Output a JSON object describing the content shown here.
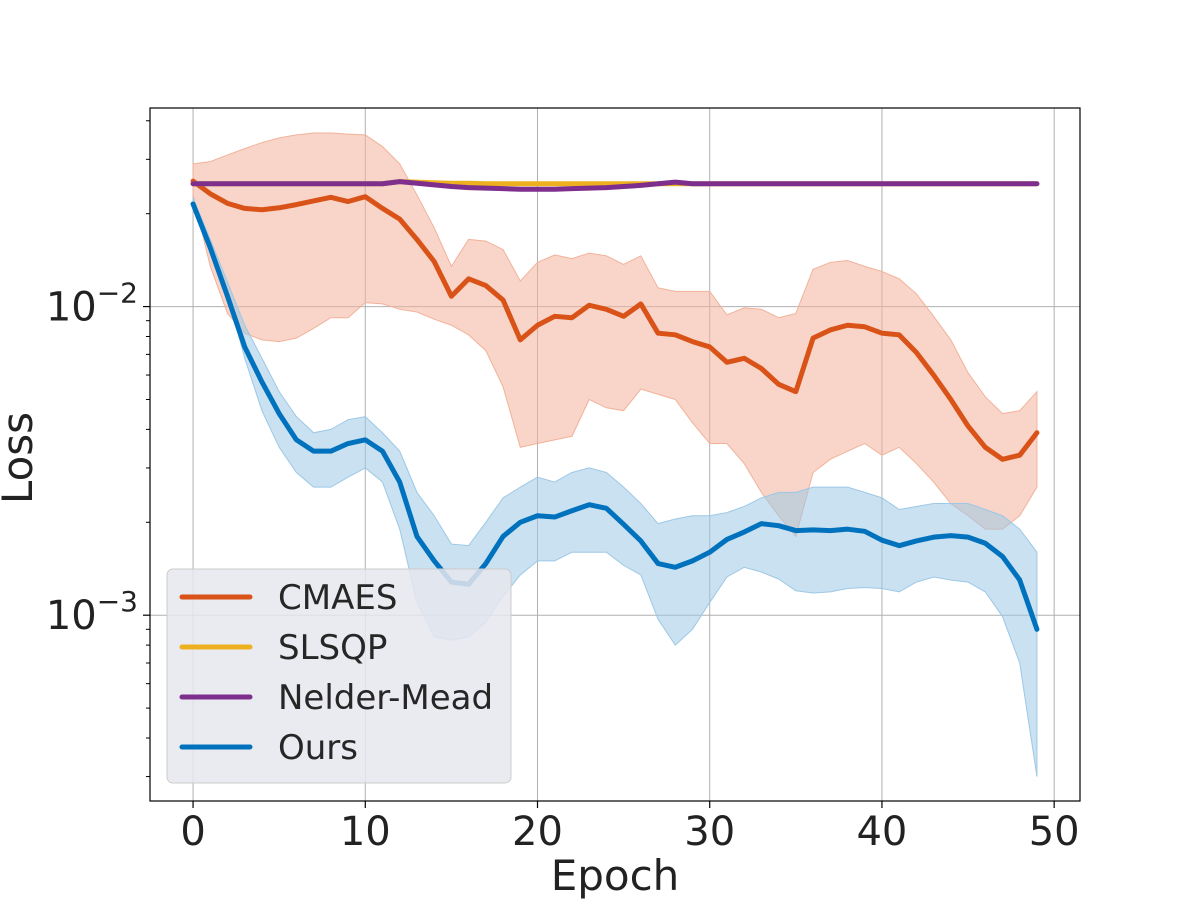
{
  "chart_data": {
    "type": "line",
    "title": "",
    "xlabel": "Epoch",
    "ylabel": "Loss",
    "yscale": "log",
    "xlim": [
      -2.5,
      51.5
    ],
    "ylim": [
      0.00025,
      0.044
    ],
    "grid": true,
    "legend_position": "lower-left",
    "x_ticks": [
      0,
      10,
      20,
      30,
      40,
      50
    ],
    "x_tick_labels": [
      "0",
      "10",
      "20",
      "30",
      "40",
      "50"
    ],
    "y_ticks": [
      0.01,
      0.001
    ],
    "y_tick_labels": [
      {
        "base": "10",
        "exp": "−2"
      },
      {
        "base": "10",
        "exp": "−3"
      }
    ],
    "x": [
      0,
      1,
      2,
      3,
      4,
      5,
      6,
      7,
      8,
      9,
      10,
      11,
      12,
      13,
      14,
      15,
      16,
      17,
      18,
      19,
      20,
      21,
      22,
      23,
      24,
      25,
      26,
      27,
      28,
      29,
      30,
      31,
      32,
      33,
      34,
      35,
      36,
      37,
      38,
      39,
      40,
      41,
      42,
      43,
      44,
      45,
      46,
      47,
      48,
      49
    ],
    "series": [
      {
        "name": "CMAES",
        "color": "#D95319",
        "band_color": "#F2B29A",
        "values": [
          0.0255,
          0.0232,
          0.0216,
          0.0208,
          0.0206,
          0.0209,
          0.0214,
          0.022,
          0.0226,
          0.0219,
          0.0227,
          0.0208,
          0.0192,
          0.0165,
          0.014,
          0.0108,
          0.0123,
          0.0117,
          0.0105,
          0.0078,
          0.0087,
          0.0093,
          0.0092,
          0.0101,
          0.0098,
          0.0093,
          0.0102,
          0.0082,
          0.0081,
          0.0077,
          0.0074,
          0.0066,
          0.0068,
          0.0063,
          0.0056,
          0.0053,
          0.0079,
          0.0084,
          0.0087,
          0.0086,
          0.0082,
          0.0081,
          0.0071,
          0.006,
          0.005,
          0.0041,
          0.0035,
          0.0032,
          0.0033,
          0.0039
        ],
        "lower": [
          0.023,
          0.0135,
          0.0095,
          0.0082,
          0.0078,
          0.0077,
          0.0079,
          0.0085,
          0.0092,
          0.0092,
          0.0103,
          0.0102,
          0.0098,
          0.0096,
          0.0091,
          0.0087,
          0.0081,
          0.0072,
          0.0055,
          0.0035,
          0.0036,
          0.0037,
          0.0038,
          0.005,
          0.0047,
          0.0046,
          0.0054,
          0.0052,
          0.005,
          0.0042,
          0.0036,
          0.0036,
          0.0031,
          0.0025,
          0.0021,
          0.0018,
          0.0029,
          0.0032,
          0.0034,
          0.0036,
          0.0033,
          0.0035,
          0.0031,
          0.0027,
          0.0023,
          0.0021,
          0.0019,
          0.0019,
          0.0021,
          0.0026
        ],
        "upper": [
          0.029,
          0.0295,
          0.031,
          0.0325,
          0.034,
          0.0352,
          0.036,
          0.0365,
          0.0365,
          0.0362,
          0.036,
          0.033,
          0.029,
          0.023,
          0.018,
          0.0135,
          0.0165,
          0.0163,
          0.0153,
          0.0121,
          0.0139,
          0.0147,
          0.0143,
          0.0149,
          0.0146,
          0.0137,
          0.0146,
          0.0115,
          0.0112,
          0.0112,
          0.0112,
          0.0094,
          0.0099,
          0.0098,
          0.0092,
          0.0095,
          0.0132,
          0.0139,
          0.0141,
          0.0135,
          0.013,
          0.0123,
          0.011,
          0.0093,
          0.0078,
          0.0061,
          0.0051,
          0.0045,
          0.0046,
          0.0053
        ]
      },
      {
        "name": "SLSQP",
        "color": "#EDB120",
        "values": [
          0.025,
          0.025,
          0.025,
          0.025,
          0.025,
          0.025,
          0.025,
          0.025,
          0.025,
          0.025,
          0.025,
          0.025,
          0.0254,
          0.0253,
          0.0252,
          0.0251,
          0.0251,
          0.025,
          0.025,
          0.025,
          0.025,
          0.025,
          0.025,
          0.025,
          0.025,
          0.025,
          0.025,
          0.025,
          0.025,
          0.025,
          0.025,
          0.025,
          0.025,
          0.025,
          0.025,
          0.025,
          0.025,
          0.025,
          0.025,
          0.025,
          0.025,
          0.025,
          0.025,
          0.025,
          0.025,
          0.025,
          0.025,
          0.025,
          0.025,
          0.025
        ]
      },
      {
        "name": "Nelder-Mead",
        "color": "#7E2F8E",
        "values": [
          0.025,
          0.025,
          0.025,
          0.025,
          0.025,
          0.025,
          0.025,
          0.025,
          0.025,
          0.025,
          0.025,
          0.025,
          0.0254,
          0.0251,
          0.0248,
          0.0245,
          0.0243,
          0.0242,
          0.0241,
          0.024,
          0.024,
          0.024,
          0.0241,
          0.0242,
          0.0243,
          0.0245,
          0.0247,
          0.025,
          0.0253,
          0.025,
          0.025,
          0.025,
          0.025,
          0.025,
          0.025,
          0.025,
          0.025,
          0.025,
          0.025,
          0.025,
          0.025,
          0.025,
          0.025,
          0.025,
          0.025,
          0.025,
          0.025,
          0.025,
          0.025,
          0.025
        ]
      },
      {
        "name": "Ours",
        "color": "#0072BD",
        "band_color": "#9DC8E6",
        "values": [
          0.0215,
          0.0155,
          0.0108,
          0.0074,
          0.0057,
          0.0045,
          0.0037,
          0.0034,
          0.0034,
          0.0036,
          0.0037,
          0.0034,
          0.0027,
          0.0018,
          0.0015,
          0.00128,
          0.00126,
          0.00147,
          0.0018,
          0.002,
          0.0021,
          0.00208,
          0.00218,
          0.00228,
          0.00222,
          0.00197,
          0.00174,
          0.00147,
          0.00143,
          0.0015,
          0.0016,
          0.00176,
          0.00186,
          0.00198,
          0.00195,
          0.00188,
          0.00189,
          0.00188,
          0.0019,
          0.00187,
          0.00175,
          0.00168,
          0.00174,
          0.00179,
          0.00181,
          0.00179,
          0.00171,
          0.00155,
          0.0013,
          0.0009
        ],
        "lower": [
          0.021,
          0.0155,
          0.011,
          0.0068,
          0.0046,
          0.0035,
          0.0029,
          0.0026,
          0.0026,
          0.0028,
          0.003,
          0.0027,
          0.0019,
          0.0011,
          0.00085,
          0.00083,
          0.00085,
          0.00095,
          0.00115,
          0.00135,
          0.0015,
          0.0015,
          0.0016,
          0.0016,
          0.0016,
          0.00145,
          0.00135,
          0.00097,
          0.0008,
          0.0009,
          0.0011,
          0.00133,
          0.00143,
          0.00138,
          0.00131,
          0.0012,
          0.00118,
          0.00119,
          0.00122,
          0.00123,
          0.00122,
          0.00119,
          0.00128,
          0.00133,
          0.0013,
          0.00128,
          0.00119,
          0.00099,
          0.0007,
          0.0003
        ],
        "upper": [
          0.0225,
          0.0165,
          0.012,
          0.0087,
          0.0068,
          0.0053,
          0.0044,
          0.0039,
          0.004,
          0.0043,
          0.0044,
          0.0039,
          0.0034,
          0.0025,
          0.0021,
          0.0017,
          0.00168,
          0.002,
          0.0024,
          0.0026,
          0.0028,
          0.0027,
          0.0029,
          0.003,
          0.0029,
          0.0026,
          0.0023,
          0.00198,
          0.00205,
          0.0021,
          0.0021,
          0.00215,
          0.00225,
          0.0024,
          0.0025,
          0.0025,
          0.0026,
          0.0026,
          0.0026,
          0.0025,
          0.0024,
          0.0022,
          0.00225,
          0.0023,
          0.0023,
          0.0023,
          0.0022,
          0.0021,
          0.0019,
          0.0016
        ]
      }
    ]
  }
}
